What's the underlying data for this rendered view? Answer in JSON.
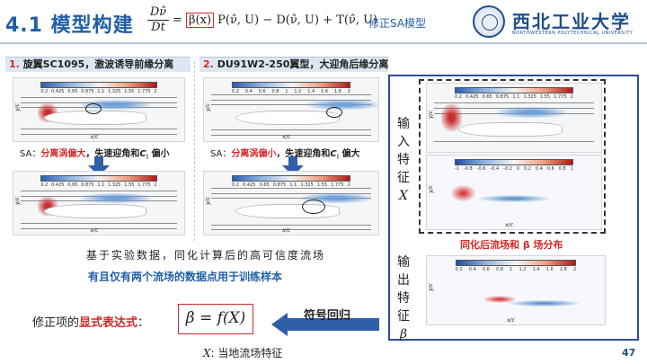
{
  "header": {
    "title": "4.1 模型构建",
    "eq_num": "Dν̂",
    "eq_den": "Dt",
    "eq_boxed": "β(x)",
    "eq_rest": "P(ν̂, U) − D(ν̂, U) + T(ν̂, U)",
    "eq_note": "修正SA模型"
  },
  "logo": {
    "name_cn": "西北工业大学",
    "name_en": "NORTHWESTERN POLYTECHNICAL UNIVERSITY"
  },
  "panels": {
    "left_title_num": "1.",
    "left_title": "旋翼SC1095，激波诱导前缘分离",
    "right_title_num": "2.",
    "right_title": "DU91W2-250翼型，大迎角后缘分离",
    "left_caption": {
      "prefix": "SA：",
      "highlight": "分离涡偏大",
      "rest": "，失速迎角和",
      "cl": "C",
      "cl_sub": "l",
      "tail": " 偏小"
    },
    "right_caption": {
      "prefix": "SA：",
      "highlight": "分离涡偏小",
      "rest": "，失速迎角和",
      "cl": "C",
      "cl_sub": "l",
      "tail": " 偏大"
    },
    "colorbar_ticks": [
      "0.2",
      "0.425",
      "0.65",
      "0.875",
      "1.1",
      "1.325",
      "1.55",
      "1.775",
      "2"
    ],
    "colorbar_ticks_b": [
      "0.2",
      "0.4",
      "0.6",
      "0.8",
      "1",
      "1.2",
      "1.4",
      "1.6",
      "1.8",
      "2"
    ],
    "colorbar_ticks_beta": [
      "-1",
      "-0.8",
      "-0.6",
      "-0.4",
      "-0.2",
      "0",
      "0.2",
      "0.4",
      "0.6",
      "0.8",
      "1"
    ],
    "axis_y": "y/c",
    "axis_x": "x/c"
  },
  "body": {
    "text1": "基于实验数据，同化计算后的高可信度流场",
    "text2": "有且仅有两个流场的数据点用于训练样本",
    "expr_label_prefix": "修正项的",
    "expr_label_em": "显式表达式",
    "expr_label_suffix": "：",
    "expr": "β = f(X)",
    "x_note_sym": "X",
    "x_note": ":  当地流场特征",
    "regress": "符号回归"
  },
  "right": {
    "input_label": [
      "输",
      "入",
      "特",
      "征"
    ],
    "input_sym": "X",
    "output_label": [
      "输",
      "出",
      "特",
      "征"
    ],
    "output_sym": "β",
    "caption": "同化后流场和 β 场分布"
  },
  "page_number": "47"
}
